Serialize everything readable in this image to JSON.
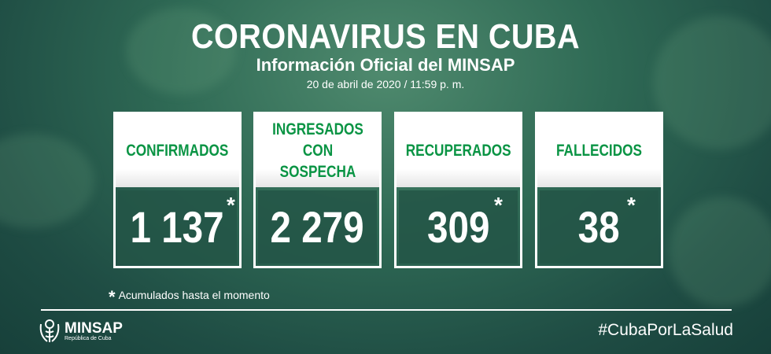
{
  "header": {
    "title": "CORONAVIRUS EN CUBA",
    "subtitle": "Información Oficial del MINSAP",
    "date": "20 de abril de 2020 / 11:59 p. m."
  },
  "cards": [
    {
      "label": "CONFIRMADOS",
      "value": "1 137",
      "asterisk": "*"
    },
    {
      "label": "INGRESADOS CON SOSPECHA",
      "value": "2 279",
      "asterisk": ""
    },
    {
      "label": "RECUPERADOS",
      "value": "309",
      "asterisk": "*"
    },
    {
      "label": "FALLECIDOS",
      "value": "38",
      "asterisk": "*"
    }
  ],
  "footnote": {
    "mark": "*",
    "text": "Acumulados hasta el momento"
  },
  "footer": {
    "logo_name": "MINSAP",
    "logo_sub": "República de Cuba",
    "hashtag": "#CubaPorLaSalud"
  },
  "colors": {
    "accent": "#0a9444",
    "background": "#2f6a55"
  }
}
